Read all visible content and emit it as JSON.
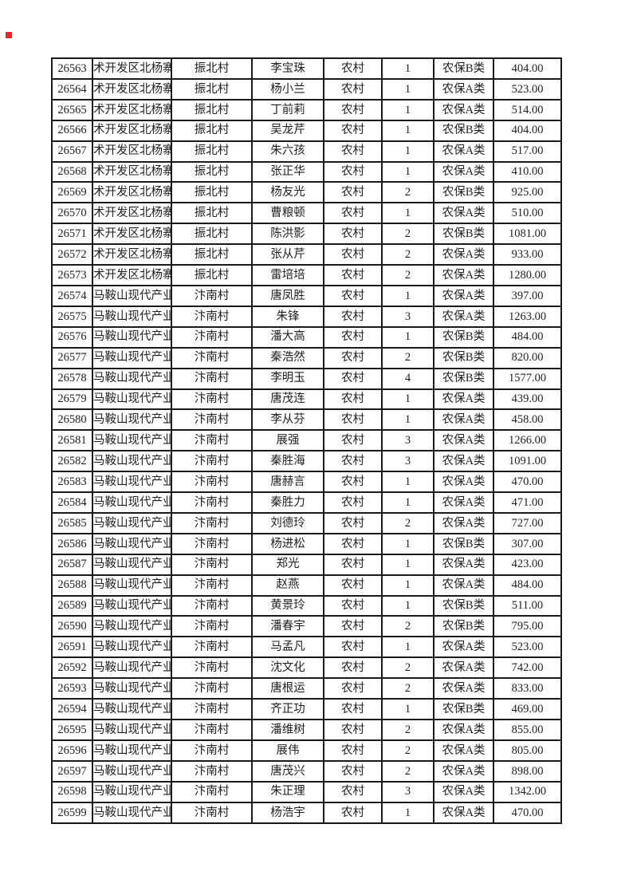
{
  "page": {
    "background": "#ffffff",
    "marker_color": "#e8262d",
    "border_color": "#1b1b1b",
    "text_color": "#1f1f1f"
  },
  "table": {
    "column_keys": [
      "serial",
      "district",
      "village",
      "name",
      "residence",
      "count",
      "category",
      "amount"
    ],
    "rows": [
      [
        "26563",
        "术开发区北杨寨",
        "振北村",
        "李宝珠",
        "农村",
        "1",
        "农保B类",
        "404.00"
      ],
      [
        "26564",
        "术开发区北杨寨",
        "振北村",
        "杨小兰",
        "农村",
        "1",
        "农保A类",
        "523.00"
      ],
      [
        "26565",
        "术开发区北杨寨",
        "振北村",
        "丁前莉",
        "农村",
        "1",
        "农保A类",
        "514.00"
      ],
      [
        "26566",
        "术开发区北杨寨",
        "振北村",
        "吴龙芹",
        "农村",
        "1",
        "农保B类",
        "404.00"
      ],
      [
        "26567",
        "术开发区北杨寨",
        "振北村",
        "朱六孩",
        "农村",
        "1",
        "农保A类",
        "517.00"
      ],
      [
        "26568",
        "术开发区北杨寨",
        "振北村",
        "张正华",
        "农村",
        "1",
        "农保A类",
        "410.00"
      ],
      [
        "26569",
        "术开发区北杨寨",
        "振北村",
        "杨友光",
        "农村",
        "2",
        "农保B类",
        "925.00"
      ],
      [
        "26570",
        "术开发区北杨寨",
        "振北村",
        "曹粮顿",
        "农村",
        "1",
        "农保A类",
        "510.00"
      ],
      [
        "26571",
        "术开发区北杨寨",
        "振北村",
        "陈洪影",
        "农村",
        "2",
        "农保B类",
        "1081.00"
      ],
      [
        "26572",
        "术开发区北杨寨",
        "振北村",
        "张从芹",
        "农村",
        "2",
        "农保A类",
        "933.00"
      ],
      [
        "26573",
        "术开发区北杨寨",
        "振北村",
        "雷培培",
        "农村",
        "2",
        "农保A类",
        "1280.00"
      ],
      [
        "26574",
        "马鞍山现代产业",
        "汴南村",
        "唐凤胜",
        "农村",
        "1",
        "农保A类",
        "397.00"
      ],
      [
        "26575",
        "马鞍山现代产业",
        "汴南村",
        "朱锋",
        "农村",
        "3",
        "农保A类",
        "1263.00"
      ],
      [
        "26576",
        "马鞍山现代产业",
        "汴南村",
        "潘大高",
        "农村",
        "1",
        "农保B类",
        "484.00"
      ],
      [
        "26577",
        "马鞍山现代产业",
        "汴南村",
        "秦浩然",
        "农村",
        "2",
        "农保B类",
        "820.00"
      ],
      [
        "26578",
        "马鞍山现代产业",
        "汴南村",
        "李明玉",
        "农村",
        "4",
        "农保B类",
        "1577.00"
      ],
      [
        "26579",
        "马鞍山现代产业",
        "汴南村",
        "唐茂连",
        "农村",
        "1",
        "农保A类",
        "439.00"
      ],
      [
        "26580",
        "马鞍山现代产业",
        "汴南村",
        "李从芬",
        "农村",
        "1",
        "农保A类",
        "458.00"
      ],
      [
        "26581",
        "马鞍山现代产业",
        "汴南村",
        "展强",
        "农村",
        "3",
        "农保A类",
        "1266.00"
      ],
      [
        "26582",
        "马鞍山现代产业",
        "汴南村",
        "秦胜海",
        "农村",
        "3",
        "农保A类",
        "1091.00"
      ],
      [
        "26583",
        "马鞍山现代产业",
        "汴南村",
        "唐赫言",
        "农村",
        "1",
        "农保A类",
        "470.00"
      ],
      [
        "26584",
        "马鞍山现代产业",
        "汴南村",
        "秦胜力",
        "农村",
        "1",
        "农保A类",
        "471.00"
      ],
      [
        "26585",
        "马鞍山现代产业",
        "汴南村",
        "刘德玲",
        "农村",
        "2",
        "农保A类",
        "727.00"
      ],
      [
        "26586",
        "马鞍山现代产业",
        "汴南村",
        "杨进松",
        "农村",
        "1",
        "农保B类",
        "307.00"
      ],
      [
        "26587",
        "马鞍山现代产业",
        "汴南村",
        "郑光",
        "农村",
        "1",
        "农保A类",
        "423.00"
      ],
      [
        "26588",
        "马鞍山现代产业",
        "汴南村",
        "赵燕",
        "农村",
        "1",
        "农保A类",
        "484.00"
      ],
      [
        "26589",
        "马鞍山现代产业",
        "汴南村",
        "黄景玲",
        "农村",
        "1",
        "农保B类",
        "511.00"
      ],
      [
        "26590",
        "马鞍山现代产业",
        "汴南村",
        "潘春宇",
        "农村",
        "2",
        "农保B类",
        "795.00"
      ],
      [
        "26591",
        "马鞍山现代产业",
        "汴南村",
        "马孟凡",
        "农村",
        "1",
        "农保A类",
        "523.00"
      ],
      [
        "26592",
        "马鞍山现代产业",
        "汴南村",
        "沈文化",
        "农村",
        "2",
        "农保A类",
        "742.00"
      ],
      [
        "26593",
        "马鞍山现代产业",
        "汴南村",
        "唐根运",
        "农村",
        "2",
        "农保A类",
        "833.00"
      ],
      [
        "26594",
        "马鞍山现代产业",
        "汴南村",
        "齐正功",
        "农村",
        "1",
        "农保B类",
        "469.00"
      ],
      [
        "26595",
        "马鞍山现代产业",
        "汴南村",
        "潘维树",
        "农村",
        "2",
        "农保A类",
        "855.00"
      ],
      [
        "26596",
        "马鞍山现代产业",
        "汴南村",
        "展伟",
        "农村",
        "2",
        "农保A类",
        "805.00"
      ],
      [
        "26597",
        "马鞍山现代产业",
        "汴南村",
        "唐茂兴",
        "农村",
        "2",
        "农保A类",
        "898.00"
      ],
      [
        "26598",
        "马鞍山现代产业",
        "汴南村",
        "朱正理",
        "农村",
        "3",
        "农保A类",
        "1342.00"
      ],
      [
        "26599",
        "马鞍山现代产业",
        "汴南村",
        "杨浩宇",
        "农村",
        "1",
        "农保A类",
        "470.00"
      ]
    ]
  }
}
